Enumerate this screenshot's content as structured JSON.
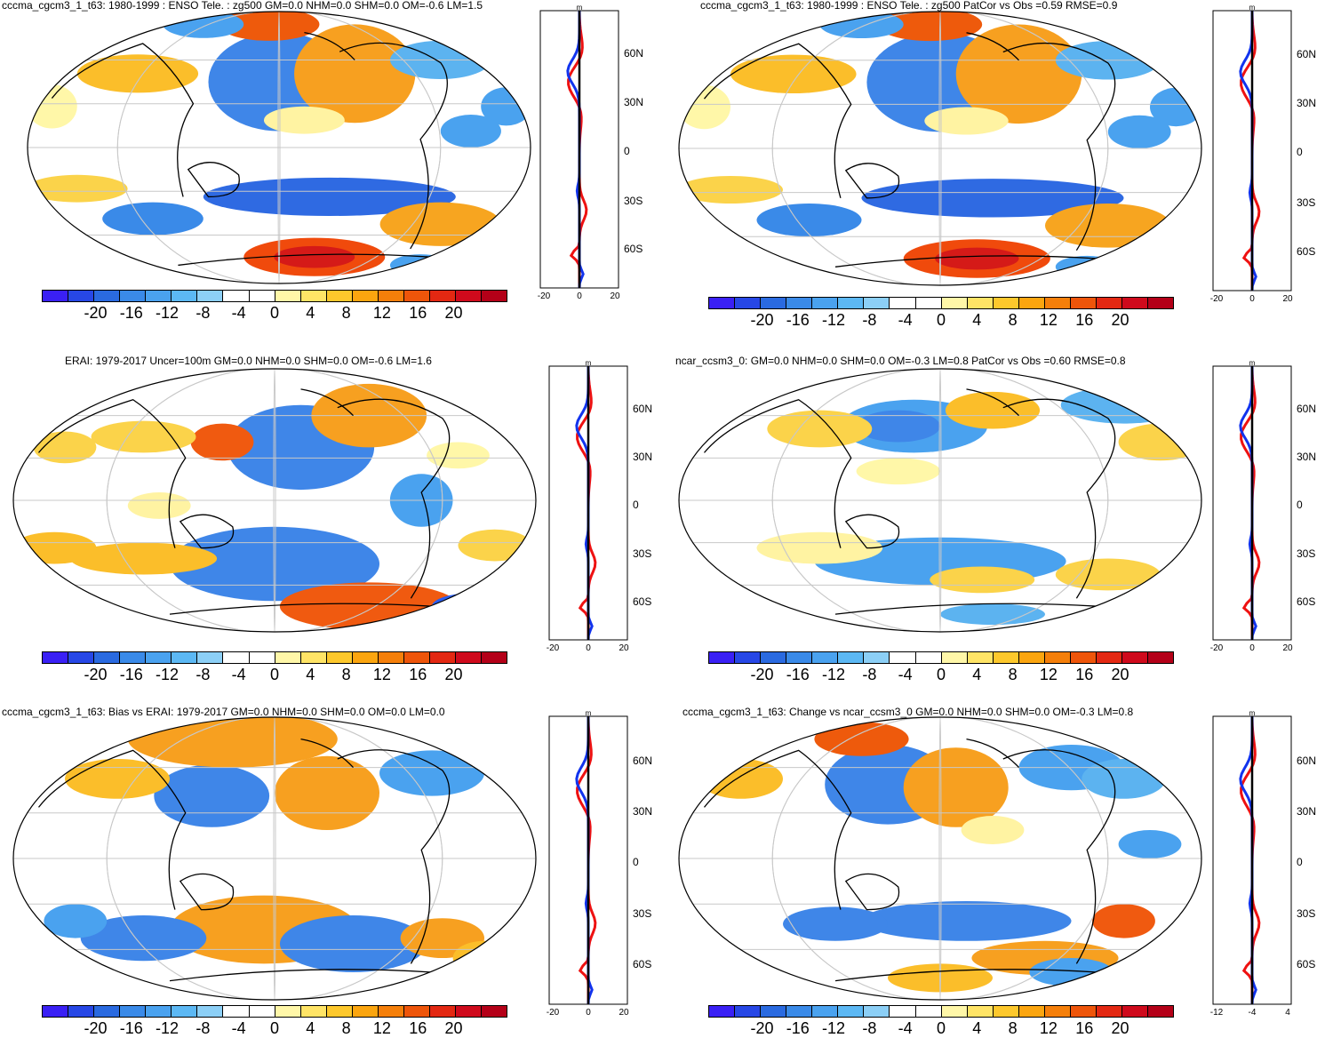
{
  "colorbar": {
    "labels": [
      "-20",
      "-16",
      "-12",
      "-8",
      "-4",
      "0",
      "4",
      "8",
      "12",
      "16",
      "20"
    ],
    "colors": [
      "#3a20f5",
      "#2747e6",
      "#2a6ae0",
      "#3a8ae8",
      "#4aa2ef",
      "#5cb8f4",
      "#8ccff6",
      "#ffffff",
      "#ffffff",
      "#fff7a8",
      "#ffe466",
      "#fdc82c",
      "#fba50f",
      "#f57f0a",
      "#ee550a",
      "#e32812",
      "#cf0a1c",
      "#b40018"
    ]
  },
  "panels": [
    {
      "title": "cccma_cgcm3_1_t63: 1980-1999 : ENSO Tele. : zg500 GM=0.0 NHM=0.0 SHM=0.0 OM=-0.6 LM=1.5",
      "lat_labels": [
        "60N",
        "30N",
        "0",
        "30S",
        "60S"
      ],
      "zonal_unit": "m",
      "zonal_ticks": [
        "-20",
        "0",
        "20"
      ],
      "pattern": "model_a"
    },
    {
      "title": "cccma_cgcm3_1_t63: 1980-1999 : ENSO Tele. : zg500 PatCor vs Obs =0.59 RMSE=0.9",
      "lat_labels": [
        "60N",
        "30N",
        "0",
        "30S",
        "60S"
      ],
      "zonal_unit": "m",
      "zonal_ticks": [
        "-20",
        "0",
        "20"
      ],
      "pattern": "model_a"
    },
    {
      "title": "ERAI: 1979-2017 Uncer=100m GM=0.0 NHM=0.0 SHM=0.0 OM=-0.6 LM=1.6",
      "lat_labels": [
        "60N",
        "30N",
        "0",
        "30S",
        "60S"
      ],
      "zonal_unit": "m",
      "zonal_ticks": [
        "-20",
        "0",
        "20"
      ],
      "pattern": "erai"
    },
    {
      "title": "ncar_ccsm3_0: GM=0.0 NHM=0.0 SHM=0.0 OM=-0.3 LM=0.8 PatCor vs Obs =0.60 RMSE=0.8",
      "lat_labels": [
        "60N",
        "30N",
        "0",
        "30S",
        "60S"
      ],
      "zonal_unit": "m",
      "zonal_ticks": [
        "-20",
        "0",
        "20"
      ],
      "pattern": "ncar"
    },
    {
      "title": "cccma_cgcm3_1_t63: Bias vs ERAI: 1979-2017 GM=0.0 NHM=0.0 SHM=0.0 OM=0.0 LM=0.0",
      "lat_labels": [
        "60N",
        "30N",
        "0",
        "30S",
        "60S"
      ],
      "zonal_unit": "m",
      "zonal_ticks": [
        "-20",
        "0",
        "20"
      ],
      "pattern": "bias"
    },
    {
      "title": "cccma_cgcm3_1_t63: Change vs ncar_ccsm3_0 GM=0.0 NHM=0.0 SHM=0.0 OM=-0.3 LM=0.8",
      "lat_labels": [
        "60N",
        "30N",
        "0",
        "30S",
        "60S"
      ],
      "zonal_unit": "m",
      "zonal_ticks": [
        "-12",
        "-4",
        "4"
      ],
      "pattern": "change"
    }
  ]
}
